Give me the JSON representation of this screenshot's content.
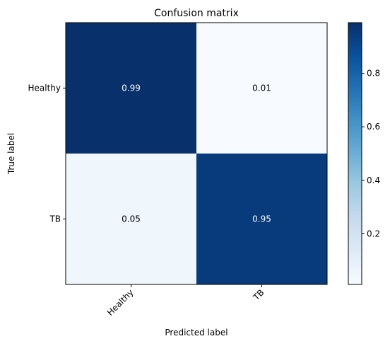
{
  "chart_data": {
    "type": "heatmap",
    "title": "Confusion matrix",
    "xlabel": "Predicted label",
    "ylabel": "True label",
    "x_categories": [
      "Healthy",
      "TB"
    ],
    "y_categories": [
      "Healthy",
      "TB"
    ],
    "values": [
      [
        0.99,
        0.01
      ],
      [
        0.05,
        0.95
      ]
    ],
    "cell_labels": [
      [
        "0.99",
        "0.01"
      ],
      [
        "0.05",
        "0.95"
      ]
    ],
    "colormap": "Blues",
    "colors": {
      "low": "#f7fbff",
      "high": "#08306b",
      "text_on_dark": "#ffffff",
      "text_on_light": "#000000"
    },
    "colorbar": {
      "range": [
        0.01,
        0.99
      ],
      "ticks": [
        0.2,
        0.4,
        0.6,
        0.8
      ],
      "tick_labels": [
        "0.2",
        "0.4",
        "0.6",
        "0.8"
      ]
    },
    "xtick_rotation_deg": 45,
    "grid": false
  }
}
